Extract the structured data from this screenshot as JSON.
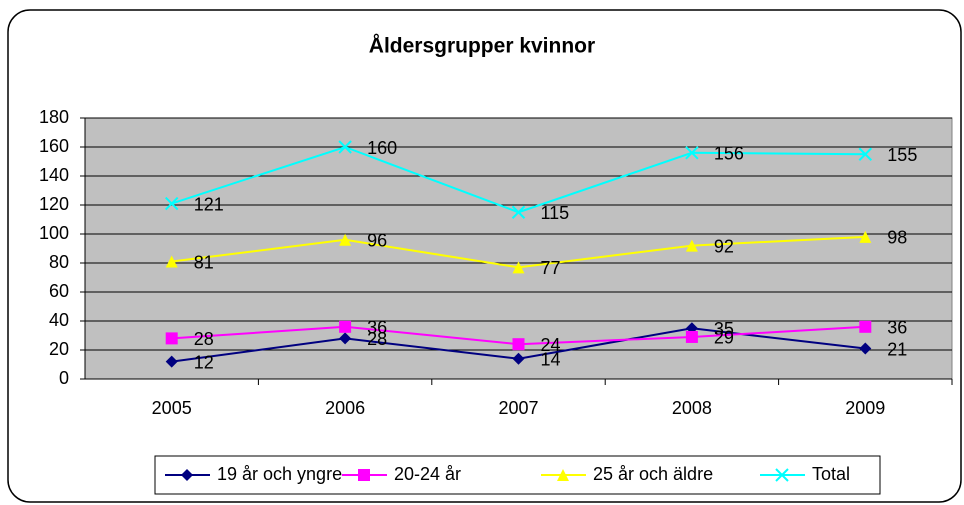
{
  "chart_data": {
    "type": "line",
    "title": "Åldersgrupper kvinnor",
    "categories": [
      "2005",
      "2006",
      "2007",
      "2008",
      "2009"
    ],
    "series": [
      {
        "name": "19 år och yngre",
        "color": "#000080",
        "marker": "diamond",
        "values": [
          12,
          28,
          14,
          35,
          21
        ]
      },
      {
        "name": "20-24 år",
        "color": "#ff00ff",
        "marker": "square",
        "values": [
          28,
          36,
          24,
          29,
          36
        ]
      },
      {
        "name": "25 år och äldre",
        "color": "#ffff00",
        "marker": "triangle",
        "values": [
          81,
          96,
          77,
          92,
          98
        ]
      },
      {
        "name": "Total",
        "color": "#00ffff",
        "marker": "x",
        "values": [
          121,
          160,
          115,
          156,
          155
        ]
      }
    ],
    "ylim": [
      0,
      180
    ],
    "yticks": [
      0,
      20,
      40,
      60,
      80,
      100,
      120,
      140,
      160,
      180
    ],
    "grid": true,
    "legend": "bottom"
  }
}
